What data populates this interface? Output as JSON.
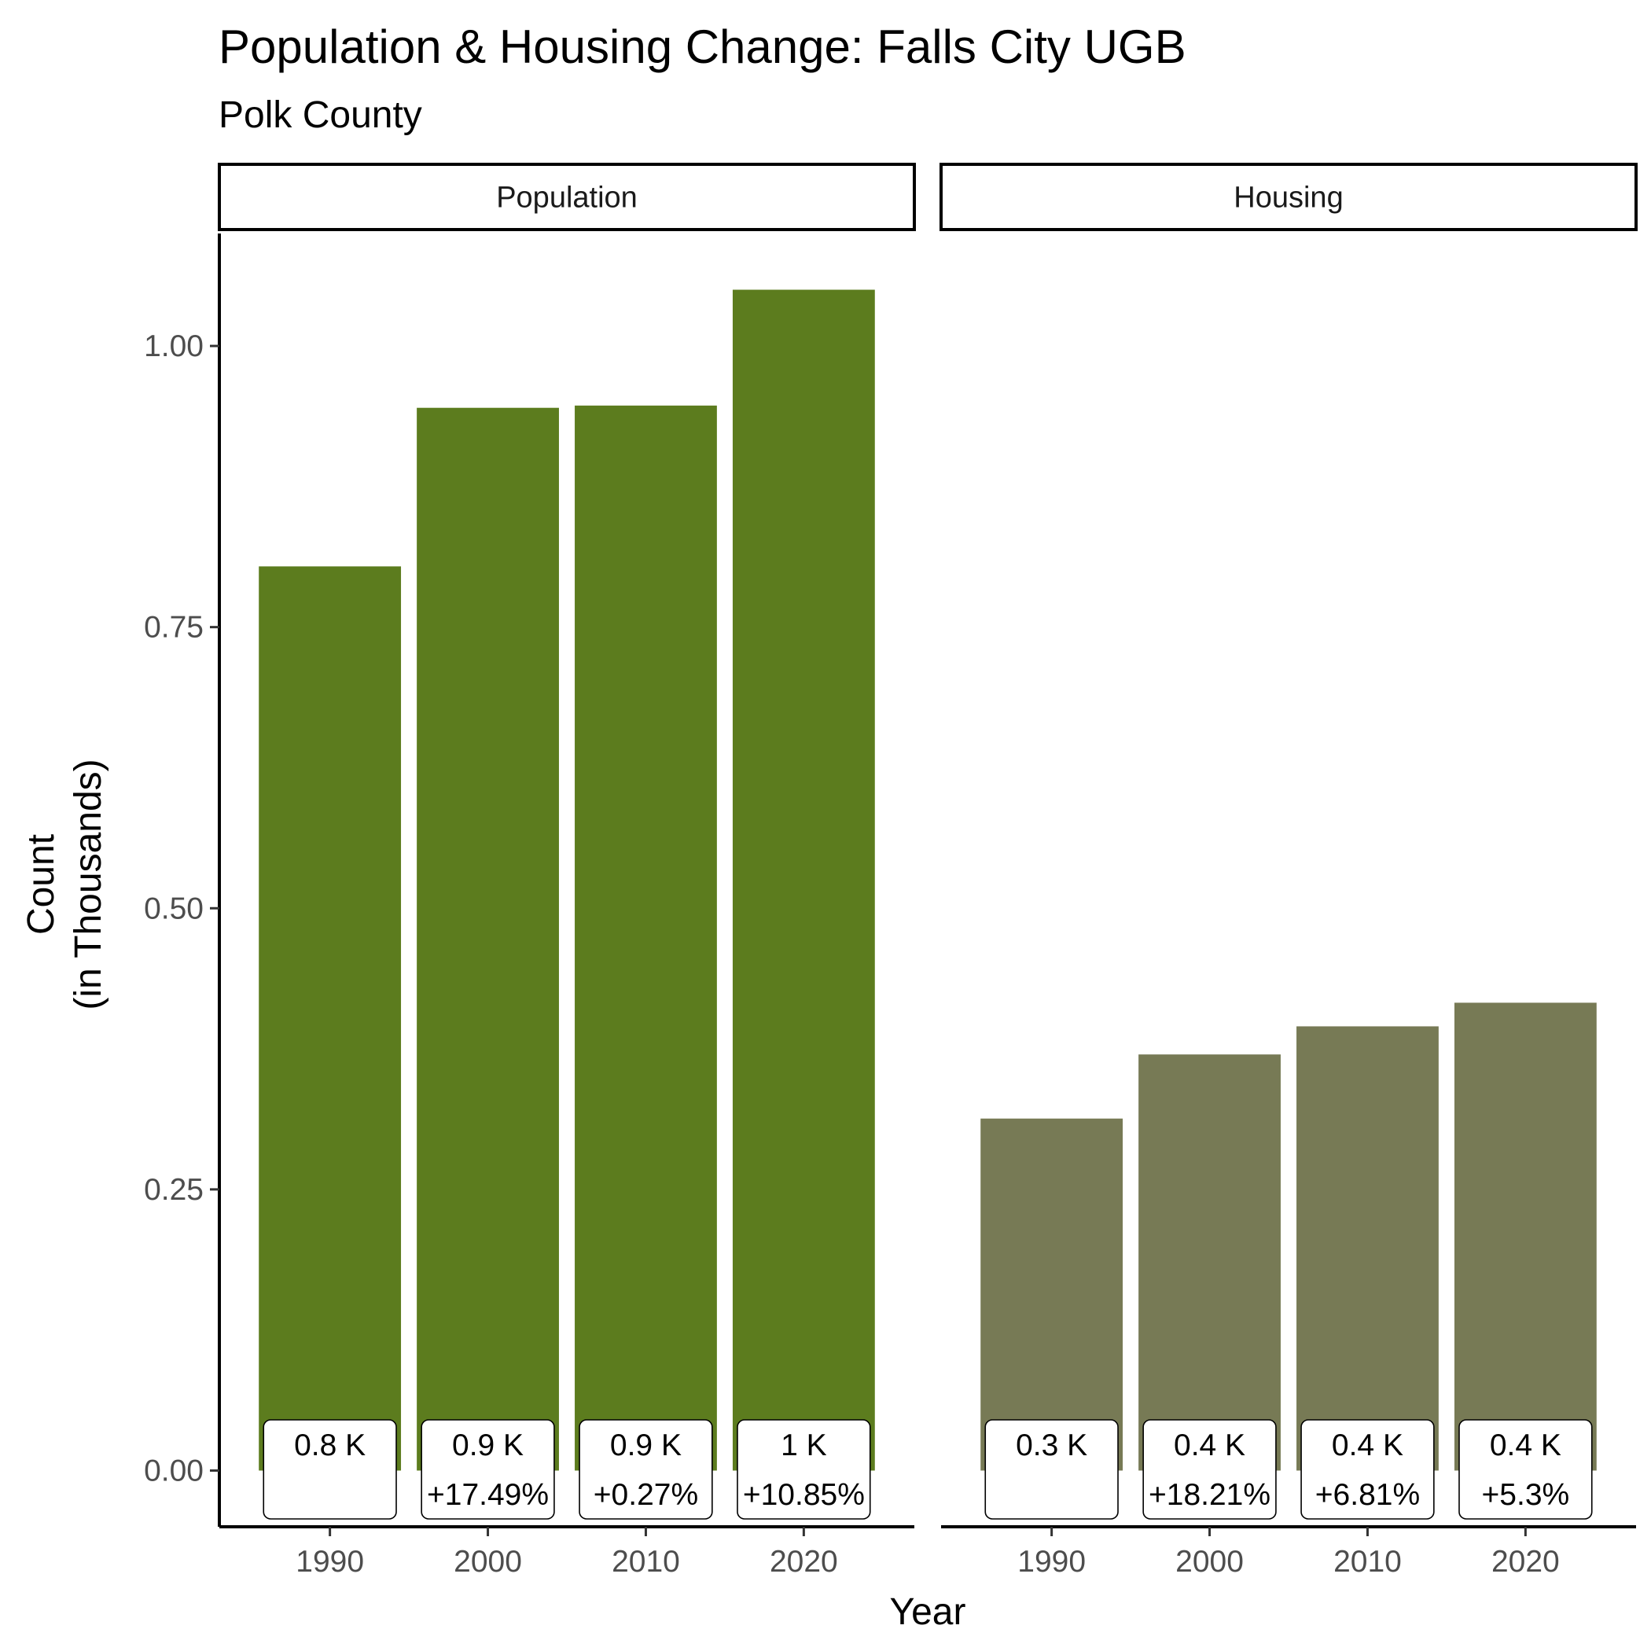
{
  "title": "Population & Housing Change: Falls City UGB",
  "subtitle": "Polk County",
  "chart_data": {
    "type": "bar",
    "facets": [
      "Population",
      "Housing"
    ],
    "categories": [
      "1990",
      "2000",
      "2010",
      "2020"
    ],
    "series": [
      {
        "name": "Population",
        "values": [
          0.804,
          0.945,
          0.947,
          1.05
        ],
        "labels": [
          "0.8 K",
          "0.9 K",
          "0.9 K",
          "1 K"
        ],
        "changes": [
          "",
          "+17.49%",
          "+0.27%",
          "+10.85%"
        ],
        "color": "#5c7c1e"
      },
      {
        "name": "Housing",
        "values": [
          0.313,
          0.37,
          0.395,
          0.416
        ],
        "labels": [
          "0.3 K",
          "0.4 K",
          "0.4 K",
          "0.4 K"
        ],
        "changes": [
          "",
          "+18.21%",
          "+6.81%",
          "+5.3%"
        ],
        "color": "#777a55"
      }
    ],
    "y_ticks": [
      "0.00",
      "0.25",
      "0.50",
      "0.75",
      "1.00"
    ],
    "ylim": [
      -0.05,
      1.1
    ],
    "xlabel": "Year",
    "ylabel": [
      "Count",
      "(in Thousands)"
    ],
    "grid": false,
    "legend": "none"
  }
}
